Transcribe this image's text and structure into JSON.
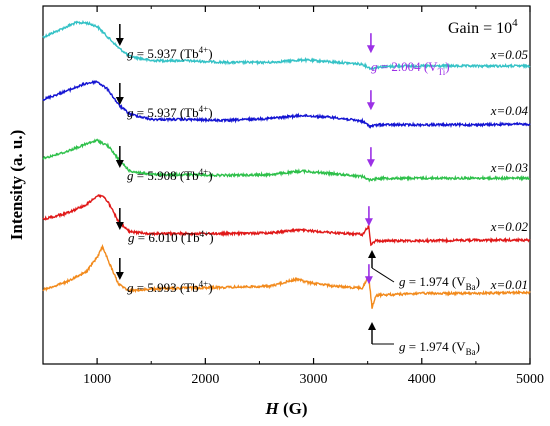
{
  "chart_data": {
    "type": "line",
    "title": "",
    "xlabel_main": "H",
    "xlabel_unit": "(G)",
    "ylabel": "Intensity (a. u.)",
    "xlim": [
      500,
      5000
    ],
    "x_ticks": [
      1000,
      2000,
      3000,
      4000,
      5000
    ],
    "y_ticks_shown": false,
    "grid": false,
    "gain_label": "Gain = 10",
    "gain_exponent": "4",
    "colors": {
      "x=0.05": "#35c2c6",
      "x=0.04": "#1414d2",
      "x=0.03": "#2ec04a",
      "x=0.02": "#e01818",
      "x=0.01": "#f28a1c",
      "tb_arrow": "#000000",
      "vti_arrow": "#9b30e6"
    },
    "series": [
      {
        "name": "x=0.05",
        "tb_field": 1210,
        "tb_g": "5.937",
        "points": [
          [
            500,
            0.55
          ],
          [
            650,
            0.75
          ],
          [
            800,
            0.95
          ],
          [
            900,
            0.95
          ],
          [
            1000,
            0.85
          ],
          [
            1100,
            0.55
          ],
          [
            1200,
            0.25
          ],
          [
            1300,
            0.02
          ],
          [
            1500,
            -0.1
          ],
          [
            1800,
            -0.1
          ],
          [
            2200,
            -0.15
          ],
          [
            2600,
            -0.15
          ],
          [
            2900,
            -0.08
          ],
          [
            3100,
            -0.12
          ],
          [
            3450,
            -0.2
          ],
          [
            3530,
            -0.32
          ],
          [
            3600,
            -0.28
          ],
          [
            3800,
            -0.25
          ],
          [
            4200,
            -0.25
          ],
          [
            4600,
            -0.25
          ],
          [
            5000,
            -0.25
          ]
        ]
      },
      {
        "name": "x=0.04",
        "tb_field": 1210,
        "tb_g": "5.937",
        "points": [
          [
            500,
            0.4
          ],
          [
            700,
            0.62
          ],
          [
            900,
            0.85
          ],
          [
            1000,
            0.9
          ],
          [
            1100,
            0.68
          ],
          [
            1200,
            0.25
          ],
          [
            1300,
            0.0
          ],
          [
            1500,
            -0.15
          ],
          [
            1800,
            -0.15
          ],
          [
            2200,
            -0.18
          ],
          [
            2600,
            -0.12
          ],
          [
            2900,
            -0.04
          ],
          [
            3200,
            -0.1
          ],
          [
            3450,
            -0.2
          ],
          [
            3520,
            -0.34
          ],
          [
            3600,
            -0.3
          ],
          [
            4000,
            -0.3
          ],
          [
            4500,
            -0.3
          ],
          [
            5000,
            -0.28
          ]
        ]
      },
      {
        "name": "x=0.03",
        "tb_field": 1210,
        "tb_g": "5.908",
        "points": [
          [
            500,
            0.35
          ],
          [
            700,
            0.52
          ],
          [
            900,
            0.75
          ],
          [
            1000,
            0.85
          ],
          [
            1100,
            0.7
          ],
          [
            1200,
            0.32
          ],
          [
            1300,
            0.0
          ],
          [
            1500,
            -0.1
          ],
          [
            1800,
            -0.1
          ],
          [
            2200,
            -0.12
          ],
          [
            2600,
            -0.1
          ],
          [
            2900,
            0.0
          ],
          [
            3200,
            -0.08
          ],
          [
            3450,
            -0.15
          ],
          [
            3520,
            -0.25
          ],
          [
            3600,
            -0.2
          ],
          [
            4000,
            -0.2
          ],
          [
            4500,
            -0.2
          ],
          [
            5000,
            -0.2
          ]
        ]
      },
      {
        "name": "x=0.02",
        "tb_field": 1210,
        "tb_g": "6.010",
        "points": [
          [
            500,
            0.3
          ],
          [
            700,
            0.45
          ],
          [
            900,
            0.7
          ],
          [
            1000,
            0.95
          ],
          [
            1050,
            0.95
          ],
          [
            1100,
            0.78
          ],
          [
            1200,
            0.22
          ],
          [
            1300,
            -0.05
          ],
          [
            1500,
            -0.1
          ],
          [
            1800,
            -0.1
          ],
          [
            2200,
            -0.1
          ],
          [
            2600,
            -0.08
          ],
          [
            2850,
            0.0
          ],
          [
            2950,
            -0.02
          ],
          [
            3200,
            -0.08
          ],
          [
            3450,
            -0.12
          ],
          [
            3510,
            0.1
          ],
          [
            3530,
            -0.42
          ],
          [
            3570,
            -0.3
          ],
          [
            4000,
            -0.3
          ],
          [
            4500,
            -0.28
          ],
          [
            5000,
            -0.28
          ]
        ]
      },
      {
        "name": "x=0.01",
        "tb_field": 1210,
        "tb_g": "5.993",
        "points": [
          [
            500,
            -0.05
          ],
          [
            700,
            0.15
          ],
          [
            900,
            0.45
          ],
          [
            1000,
            0.85
          ],
          [
            1050,
            1.15
          ],
          [
            1100,
            0.78
          ],
          [
            1200,
            0.1
          ],
          [
            1300,
            -0.08
          ],
          [
            1500,
            -0.03
          ],
          [
            1800,
            0.0
          ],
          [
            2200,
            0.02
          ],
          [
            2600,
            0.05
          ],
          [
            2850,
            0.25
          ],
          [
            2950,
            0.15
          ],
          [
            3200,
            0.05
          ],
          [
            3450,
            0.0
          ],
          [
            3510,
            0.32
          ],
          [
            3540,
            -0.55
          ],
          [
            3580,
            -0.2
          ],
          [
            4000,
            -0.15
          ],
          [
            4500,
            -0.15
          ],
          [
            5000,
            -0.12
          ]
        ]
      }
    ],
    "tb_label_text": "(Tb",
    "tb_label_sup": "4+",
    "vti": {
      "field": 3530,
      "g_text": "= 2.004 (V",
      "g_sub": "Ti"
    },
    "vba_labels": [
      {
        "g_text": "= 1.974 (V",
        "g_sub": "Ba"
      },
      {
        "g_text": "= 1.974 (V",
        "g_sub": "Ba"
      }
    ]
  }
}
